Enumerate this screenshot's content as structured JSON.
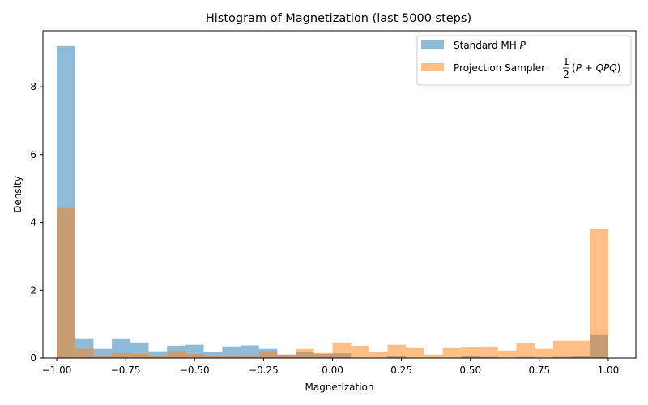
{
  "chart_data": {
    "type": "bar",
    "title": "Histogram of Magnetization (last 5000 steps)",
    "xlabel": "Magnetization",
    "ylabel": "Density",
    "xlim": [
      -1.05,
      1.1
    ],
    "ylim": [
      0,
      9.65
    ],
    "xticks": [
      -1.0,
      -0.75,
      -0.5,
      -0.25,
      0.0,
      0.25,
      0.5,
      0.75,
      1.0
    ],
    "xtick_labels": [
      "−1.00",
      "−0.75",
      "−0.50",
      "−0.25",
      "0.00",
      "0.25",
      "0.50",
      "0.75",
      "1.00"
    ],
    "yticks": [
      0,
      2,
      4,
      6,
      8
    ],
    "ytick_labels": [
      "0",
      "2",
      "4",
      "6",
      "8"
    ],
    "legend_position": "top-right",
    "grid": false,
    "bin_width": 0.0667,
    "series": [
      {
        "name": "Standard MH P",
        "color": "#1f77b4",
        "opacity": 0.5,
        "bins": [
          {
            "x0": -1.0,
            "x1": -0.9333,
            "y": 9.2
          },
          {
            "x0": -0.9333,
            "x1": -0.8667,
            "y": 0.58
          },
          {
            "x0": -0.8667,
            "x1": -0.8,
            "y": 0.27
          },
          {
            "x0": -0.8,
            "x1": -0.7333,
            "y": 0.58
          },
          {
            "x0": -0.7333,
            "x1": -0.6667,
            "y": 0.46
          },
          {
            "x0": -0.6667,
            "x1": -0.6,
            "y": 0.2
          },
          {
            "x0": -0.6,
            "x1": -0.5333,
            "y": 0.36
          },
          {
            "x0": -0.5333,
            "x1": -0.4667,
            "y": 0.39
          },
          {
            "x0": -0.4667,
            "x1": -0.4,
            "y": 0.17
          },
          {
            "x0": -0.4,
            "x1": -0.3333,
            "y": 0.34
          },
          {
            "x0": -0.3333,
            "x1": -0.2667,
            "y": 0.37
          },
          {
            "x0": -0.2667,
            "x1": -0.2,
            "y": 0.27
          },
          {
            "x0": -0.2,
            "x1": -0.1333,
            "y": 0.1
          },
          {
            "x0": -0.1333,
            "x1": -0.0667,
            "y": 0.17
          },
          {
            "x0": -0.0667,
            "x1": 0.0,
            "y": 0.12
          },
          {
            "x0": 0.0,
            "x1": 0.0667,
            "y": 0.14
          },
          {
            "x0": 0.0667,
            "x1": 0.1333,
            "y": 0.0
          },
          {
            "x0": 0.1333,
            "x1": 0.2,
            "y": 0.0
          },
          {
            "x0": 0.2,
            "x1": 0.2667,
            "y": 0.05
          },
          {
            "x0": 0.2667,
            "x1": 0.3333,
            "y": 0.0
          },
          {
            "x0": 0.3333,
            "x1": 0.4,
            "y": 0.0
          },
          {
            "x0": 0.4,
            "x1": 0.4667,
            "y": 0.0
          },
          {
            "x0": 0.4667,
            "x1": 0.5333,
            "y": 0.05
          },
          {
            "x0": 0.5333,
            "x1": 0.6,
            "y": 0.03
          },
          {
            "x0": 0.6,
            "x1": 0.6667,
            "y": 0.0
          },
          {
            "x0": 0.6667,
            "x1": 0.7333,
            "y": 0.03
          },
          {
            "x0": 0.7333,
            "x1": 0.8,
            "y": 0.0
          },
          {
            "x0": 0.8,
            "x1": 0.8667,
            "y": 0.03
          },
          {
            "x0": 0.8667,
            "x1": 0.9333,
            "y": 0.05
          },
          {
            "x0": 0.9333,
            "x1": 1.0,
            "y": 0.7
          }
        ]
      },
      {
        "name": "Projection Sampler ½(P + QPQ)",
        "color": "#ff7f0e",
        "opacity": 0.5,
        "bins": [
          {
            "x0": -1.0,
            "x1": -0.9333,
            "y": 4.43
          },
          {
            "x0": -0.9333,
            "x1": -0.8667,
            "y": 0.27
          },
          {
            "x0": -0.8667,
            "x1": -0.8,
            "y": 0.05
          },
          {
            "x0": -0.8,
            "x1": -0.7333,
            "y": 0.15
          },
          {
            "x0": -0.7333,
            "x1": -0.6667,
            "y": 0.12
          },
          {
            "x0": -0.6667,
            "x1": -0.6,
            "y": 0.07
          },
          {
            "x0": -0.6,
            "x1": -0.5333,
            "y": 0.22
          },
          {
            "x0": -0.5333,
            "x1": -0.4667,
            "y": 0.12
          },
          {
            "x0": -0.4667,
            "x1": -0.4,
            "y": 0.05
          },
          {
            "x0": -0.4,
            "x1": -0.3333,
            "y": 0.05
          },
          {
            "x0": -0.3333,
            "x1": -0.2667,
            "y": 0.07
          },
          {
            "x0": -0.2667,
            "x1": -0.2,
            "y": 0.2
          },
          {
            "x0": -0.2,
            "x1": -0.1333,
            "y": 0.1
          },
          {
            "x0": -0.1333,
            "x1": -0.0667,
            "y": 0.27
          },
          {
            "x0": -0.0667,
            "x1": 0.0,
            "y": 0.15
          },
          {
            "x0": 0.0,
            "x1": 0.0667,
            "y": 0.46
          },
          {
            "x0": 0.0667,
            "x1": 0.1333,
            "y": 0.36
          },
          {
            "x0": 0.1333,
            "x1": 0.2,
            "y": 0.17
          },
          {
            "x0": 0.2,
            "x1": 0.2667,
            "y": 0.39
          },
          {
            "x0": 0.2667,
            "x1": 0.3333,
            "y": 0.29
          },
          {
            "x0": 0.3333,
            "x1": 0.4,
            "y": 0.1
          },
          {
            "x0": 0.4,
            "x1": 0.4667,
            "y": 0.29
          },
          {
            "x0": 0.4667,
            "x1": 0.5333,
            "y": 0.32
          },
          {
            "x0": 0.5333,
            "x1": 0.6,
            "y": 0.34
          },
          {
            "x0": 0.6,
            "x1": 0.6667,
            "y": 0.22
          },
          {
            "x0": 0.6667,
            "x1": 0.7333,
            "y": 0.44
          },
          {
            "x0": 0.7333,
            "x1": 0.8,
            "y": 0.27
          },
          {
            "x0": 0.8,
            "x1": 0.8667,
            "y": 0.51
          },
          {
            "x0": 0.8667,
            "x1": 0.9333,
            "y": 0.51
          },
          {
            "x0": 0.9333,
            "x1": 1.0,
            "y": 3.8
          }
        ]
      }
    ]
  },
  "legend": {
    "series1_prefix": "Standard MH ",
    "series1_symbol": "P",
    "series2_prefix": "Projection Sampler ",
    "series2_frac_num": "1",
    "series2_frac_den": "2",
    "series2_expr_open": "(",
    "series2_expr_p": "P",
    "series2_expr_plus": " + ",
    "series2_expr_qpq": "QPQ",
    "series2_expr_close": ")"
  }
}
